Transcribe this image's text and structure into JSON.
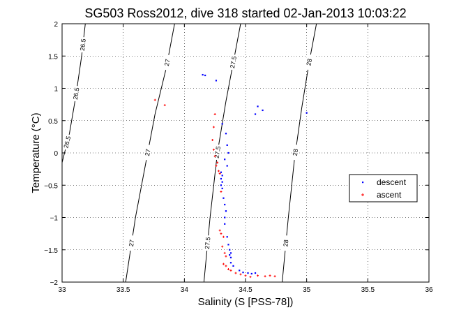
{
  "chart_data": {
    "type": "scatter",
    "title": "SG503 Ross2012, dive 318 started 02-Jan-2013 10:03:22",
    "xlabel": "Salinity (S [PSS-78])",
    "ylabel": "Temperature (°C)",
    "xlim": [
      33,
      36
    ],
    "ylim": [
      -2,
      2
    ],
    "xticks": [
      33,
      33.5,
      34,
      34.5,
      35,
      35.5,
      36
    ],
    "xtick_labels": [
      "33",
      "33.5",
      "34",
      "34.5",
      "35",
      "35.5",
      "36"
    ],
    "yticks": [
      -2,
      -1.5,
      -1,
      -0.5,
      0,
      0.5,
      1,
      1.5,
      2
    ],
    "ytick_labels": [
      "-2",
      "-1.5",
      "-1",
      "-0.5",
      "0",
      "0.5",
      "1",
      "1.5",
      "2"
    ],
    "grid": true,
    "legend_position": "right",
    "density_contours": [
      {
        "sigma": 26.5,
        "label": "26.5",
        "points": [
          [
            33.0,
            -0.15
          ],
          [
            33.06,
            0.3
          ],
          [
            33.11,
            0.85
          ],
          [
            33.16,
            1.5
          ],
          [
            33.19,
            2.0
          ]
        ]
      },
      {
        "sigma": 27,
        "label": "27",
        "points": [
          [
            33.52,
            -2.0
          ],
          [
            33.6,
            -1.0
          ],
          [
            33.68,
            -0.2
          ],
          [
            33.76,
            0.6
          ],
          [
            33.85,
            1.3
          ],
          [
            33.92,
            2.0
          ]
        ]
      },
      {
        "sigma": 27.5,
        "label": "27.5",
        "points": [
          [
            34.16,
            -2.0
          ],
          [
            34.21,
            -1.0
          ],
          [
            34.27,
            0.0
          ],
          [
            34.34,
            0.8
          ],
          [
            34.41,
            1.5
          ],
          [
            34.46,
            2.0
          ]
        ]
      },
      {
        "sigma": 28,
        "label": "28",
        "points": [
          [
            34.8,
            -2.0
          ],
          [
            34.85,
            -1.0
          ],
          [
            34.9,
            -0.1
          ],
          [
            34.96,
            0.7
          ],
          [
            35.02,
            1.4
          ],
          [
            35.08,
            2.0
          ]
        ]
      }
    ],
    "series": [
      {
        "name": "descent",
        "color": "#0000ff",
        "marker": "dot",
        "points": [
          [
            34.15,
            1.21
          ],
          [
            34.17,
            1.2
          ],
          [
            34.26,
            1.12
          ],
          [
            34.6,
            0.72
          ],
          [
            34.64,
            0.66
          ],
          [
            34.58,
            0.6
          ],
          [
            34.31,
            0.45
          ],
          [
            34.34,
            0.3
          ],
          [
            34.35,
            0.12
          ],
          [
            34.36,
            0.0
          ],
          [
            34.33,
            -0.1
          ],
          [
            34.35,
            -0.2
          ],
          [
            34.3,
            -0.3
          ],
          [
            34.31,
            -0.35
          ],
          [
            34.3,
            -0.4
          ],
          [
            34.31,
            -0.45
          ],
          [
            34.3,
            -0.5
          ],
          [
            34.31,
            -0.55
          ],
          [
            34.32,
            -0.7
          ],
          [
            34.33,
            -0.8
          ],
          [
            34.34,
            -0.9
          ],
          [
            34.33,
            -1.0
          ],
          [
            34.33,
            -1.1
          ],
          [
            34.35,
            -1.3
          ],
          [
            34.36,
            -1.42
          ],
          [
            34.37,
            -1.5
          ],
          [
            34.38,
            -1.55
          ],
          [
            34.37,
            -1.58
          ],
          [
            34.38,
            -1.62
          ],
          [
            34.38,
            -1.7
          ],
          [
            34.4,
            -1.75
          ],
          [
            34.45,
            -1.82
          ],
          [
            34.48,
            -1.85
          ],
          [
            34.52,
            -1.86
          ],
          [
            34.55,
            -1.87
          ],
          [
            34.58,
            -1.86
          ],
          [
            35.0,
            0.62
          ]
        ]
      },
      {
        "name": "ascent",
        "color": "#ff0000",
        "marker": "plus",
        "points": [
          [
            33.76,
            0.82
          ],
          [
            33.84,
            0.74
          ],
          [
            34.25,
            0.6
          ],
          [
            34.24,
            0.4
          ],
          [
            34.23,
            0.2
          ],
          [
            34.24,
            0.05
          ],
          [
            34.25,
            -0.05
          ],
          [
            34.27,
            -0.15
          ],
          [
            34.26,
            -0.2
          ],
          [
            34.28,
            -0.28
          ],
          [
            34.29,
            -0.32
          ],
          [
            34.3,
            -0.6
          ],
          [
            34.29,
            -1.2
          ],
          [
            34.3,
            -1.25
          ],
          [
            34.32,
            -1.3
          ],
          [
            34.31,
            -1.45
          ],
          [
            34.33,
            -1.55
          ],
          [
            34.34,
            -1.6
          ],
          [
            34.32,
            -1.72
          ],
          [
            34.34,
            -1.75
          ],
          [
            34.36,
            -1.8
          ],
          [
            34.38,
            -1.82
          ],
          [
            34.42,
            -1.86
          ],
          [
            34.46,
            -1.88
          ],
          [
            34.5,
            -1.9
          ],
          [
            34.54,
            -1.92
          ],
          [
            34.6,
            -1.9
          ],
          [
            34.66,
            -1.91
          ],
          [
            34.7,
            -1.9
          ],
          [
            34.74,
            -1.91
          ]
        ]
      }
    ]
  }
}
